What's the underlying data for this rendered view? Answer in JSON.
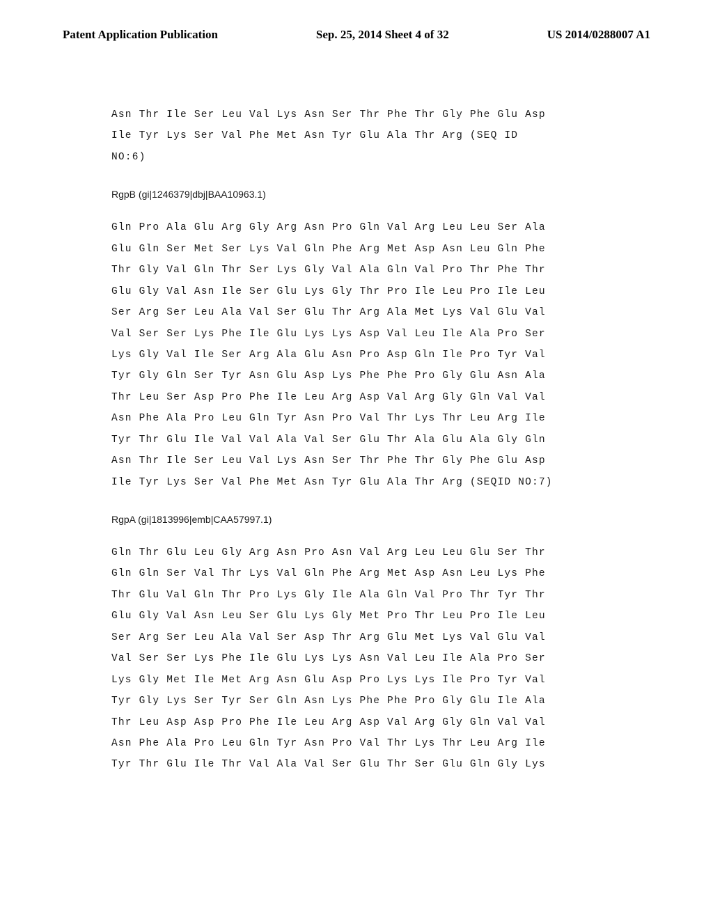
{
  "header": {
    "left": "Patent Application Publication",
    "center": "Sep. 25, 2014  Sheet 4 of 32",
    "right": "US 2014/0288007 A1"
  },
  "block1": {
    "lines": [
      "Asn Thr Ile Ser Leu Val Lys Asn Ser Thr Phe Thr Gly Phe Glu Asp",
      "Ile Tyr Lys Ser Val Phe Met Asn Tyr Glu Ala Thr Arg (SEQ ID",
      "NO:6)"
    ]
  },
  "acc1": "RgpB (gi|1246379|dbj|BAA10963.1)",
  "block2": {
    "lines": [
      "Gln Pro Ala Glu Arg Gly Arg Asn Pro Gln Val Arg Leu Leu Ser Ala",
      "Glu Gln Ser Met Ser Lys Val Gln Phe Arg Met Asp Asn Leu Gln Phe",
      "Thr Gly Val Gln Thr Ser Lys Gly Val Ala Gln Val Pro Thr Phe Thr",
      "Glu Gly Val Asn Ile Ser Glu Lys Gly Thr Pro Ile Leu Pro Ile Leu",
      "Ser Arg Ser Leu Ala Val Ser Glu Thr Arg Ala Met Lys Val Glu Val",
      "Val Ser Ser Lys Phe Ile Glu Lys Lys Asp Val Leu Ile Ala Pro Ser",
      "Lys Gly Val Ile Ser Arg Ala Glu Asn Pro Asp Gln Ile Pro Tyr Val",
      "Tyr Gly Gln Ser Tyr Asn Glu Asp Lys Phe Phe Pro Gly Glu Asn Ala",
      "Thr Leu Ser Asp Pro Phe Ile Leu Arg Asp Val Arg Gly Gln Val Val",
      "Asn Phe Ala Pro Leu Gln Tyr Asn Pro Val Thr Lys Thr Leu Arg Ile",
      "Tyr Thr Glu Ile Val Val Ala Val Ser Glu Thr Ala Glu Ala Gly Gln",
      "Asn Thr Ile Ser Leu Val Lys Asn Ser Thr Phe Thr Gly Phe Glu Asp",
      "Ile Tyr Lys Ser Val Phe Met Asn Tyr Glu Ala Thr Arg (SEQID NO:7)"
    ]
  },
  "acc2": "RgpA (gi|1813996|emb|CAA57997.1)",
  "block3": {
    "lines": [
      "Gln Thr Glu Leu Gly Arg Asn Pro Asn Val Arg Leu Leu Glu Ser Thr",
      "Gln Gln Ser Val Thr Lys Val Gln Phe Arg Met Asp Asn Leu Lys Phe",
      "Thr Glu Val Gln Thr Pro Lys Gly Ile Ala Gln Val Pro Thr Tyr Thr",
      "Glu Gly Val Asn Leu Ser Glu Lys Gly Met Pro Thr Leu Pro Ile Leu",
      "Ser Arg Ser Leu Ala Val Ser Asp Thr Arg Glu Met Lys Val Glu Val",
      "Val Ser Ser Lys Phe Ile Glu Lys Lys Asn Val Leu Ile Ala Pro Ser",
      "Lys Gly Met Ile Met Arg Asn Glu Asp Pro Lys Lys Ile Pro Tyr Val",
      "Tyr Gly Lys Ser Tyr Ser Gln Asn Lys Phe Phe Pro Gly Glu Ile Ala",
      "Thr Leu Asp Asp Pro Phe Ile Leu Arg Asp Val Arg Gly Gln Val Val",
      "Asn Phe Ala Pro Leu Gln Tyr Asn Pro Val Thr Lys Thr Leu Arg Ile",
      "Tyr Thr Glu Ile Thr Val Ala Val Ser Glu Thr Ser Glu Gln Gly Lys"
    ]
  }
}
